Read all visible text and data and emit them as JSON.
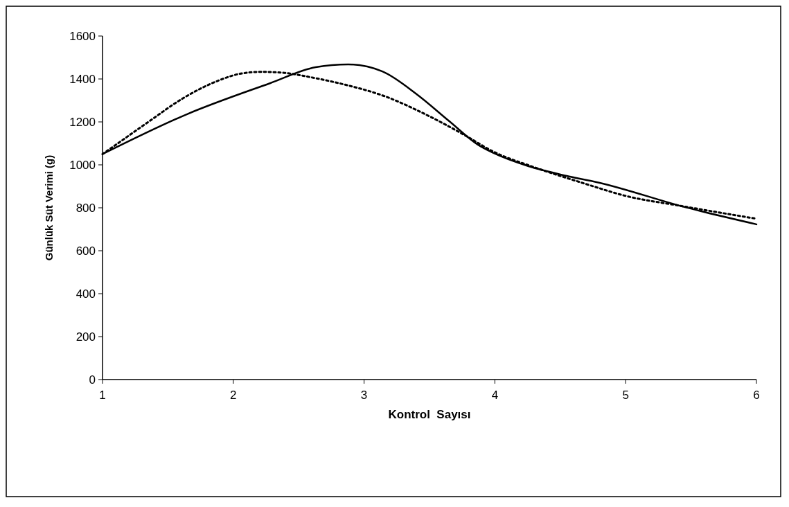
{
  "chart_data": {
    "type": "line",
    "xlabel": "Kontrol  Sayısı",
    "ylabel": "Günlük Süt Verimi (g)",
    "xlim": [
      1,
      6
    ],
    "xticks": [
      1,
      2,
      3,
      4,
      5,
      6
    ],
    "ylim": [
      0,
      1600
    ],
    "yticks": [
      0,
      200,
      400,
      600,
      800,
      1000,
      1200,
      1400,
      1600
    ],
    "grid": false,
    "marker": "none",
    "series": [
      {
        "color": "#000000",
        "line_style": "solid",
        "x": [
          1,
          1.65,
          2.28,
          2.63,
          2.88,
          3.14,
          3.4,
          3.65,
          3.87,
          3.99,
          4.25,
          4.53,
          4.79,
          5.46,
          6
        ],
        "values": [
          1050,
          1237,
          1380,
          1455,
          1468,
          1435,
          1330,
          1204,
          1094,
          1055,
          995,
          951,
          918,
          802,
          723
        ]
      },
      {
        "color": "#000000",
        "line_style": "dotted",
        "x": [
          1,
          1.18,
          1.36,
          1.61,
          1.88,
          2.05,
          2.21,
          2.38,
          2.6,
          2.85,
          3.16,
          3.5,
          3.77,
          3.99,
          4.3,
          4.69,
          4.99,
          5.44,
          6
        ],
        "values": [
          1050,
          1127,
          1204,
          1308,
          1391,
          1424,
          1433,
          1429,
          1407,
          1374,
          1319,
          1226,
          1138,
          1061,
          989,
          912,
          857,
          807,
          749
        ]
      }
    ]
  }
}
